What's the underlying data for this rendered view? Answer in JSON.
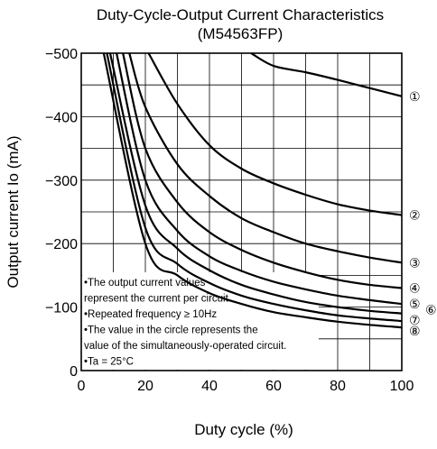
{
  "chart_data": {
    "type": "line",
    "title": "Duty-Cycle-Output Current Characteristics",
    "subtitle": "(M54563FP)",
    "xlabel": "Duty cycle  (%)",
    "ylabel": "Output current  Io (mA)",
    "xlim": [
      0,
      100
    ],
    "ylim": [
      0,
      -500
    ],
    "grid": true,
    "x_ticks": [
      0,
      20,
      40,
      60,
      80,
      100
    ],
    "x_tick_labels": [
      "0",
      "20",
      "40",
      "60",
      "80",
      "100"
    ],
    "y_ticks": [
      0,
      -100,
      -200,
      -300,
      -400,
      -500
    ],
    "y_tick_labels": [
      "0",
      "−100",
      "−200",
      "−300",
      "−400",
      "−500"
    ],
    "series": [
      {
        "name": "①",
        "x": [
          53,
          60,
          70,
          80,
          90,
          100
        ],
        "y": [
          -500,
          -480,
          -470,
          -458,
          -445,
          -432
        ]
      },
      {
        "name": "②",
        "x": [
          21,
          30,
          40,
          50,
          60,
          70,
          80,
          90,
          100
        ],
        "y": [
          -500,
          -420,
          -355,
          -318,
          -295,
          -277,
          -262,
          -252,
          -245
        ]
      },
      {
        "name": "③",
        "x": [
          15,
          20,
          30,
          40,
          50,
          60,
          70,
          80,
          90,
          100
        ],
        "y": [
          -500,
          -415,
          -325,
          -275,
          -240,
          -218,
          -200,
          -188,
          -178,
          -170
        ]
      },
      {
        "name": "④",
        "x": [
          13,
          20,
          30,
          40,
          50,
          60,
          70,
          80,
          90,
          100
        ],
        "y": [
          -500,
          -350,
          -265,
          -218,
          -190,
          -170,
          -155,
          -143,
          -135,
          -130
        ]
      },
      {
        "name": "⑤",
        "x": [
          11,
          20,
          30,
          40,
          50,
          60,
          70,
          80,
          90,
          100
        ],
        "y": [
          -500,
          -300,
          -220,
          -180,
          -157,
          -140,
          -128,
          -118,
          -111,
          -105
        ]
      },
      {
        "name": "⑥",
        "x": [
          9,
          20,
          30,
          40,
          50,
          60,
          70,
          80,
          90,
          100
        ],
        "y": [
          -500,
          -260,
          -192,
          -158,
          -135,
          -120,
          -108,
          -100,
          -94,
          -90
        ]
      },
      {
        "name": "⑦",
        "x": [
          8,
          20,
          30,
          40,
          50,
          60,
          70,
          80,
          90,
          100
        ],
        "y": [
          -500,
          -225,
          -168,
          -138,
          -118,
          -105,
          -95,
          -87,
          -82,
          -78
        ]
      },
      {
        "name": "⑧",
        "x": [
          7,
          20,
          30,
          40,
          50,
          60,
          70,
          80,
          90,
          100
        ],
        "y": [
          -500,
          -200,
          -150,
          -122,
          -105,
          -92,
          -84,
          -77,
          -72,
          -68
        ]
      }
    ],
    "annotations": [
      "•The output current values",
      "  represent the current per circuit.",
      "•Repeated frequency ≥ 10Hz",
      "•The value in the circle represents the",
      "  value of the simultaneously-operated circuit.",
      "•Ta = 25°C"
    ]
  }
}
